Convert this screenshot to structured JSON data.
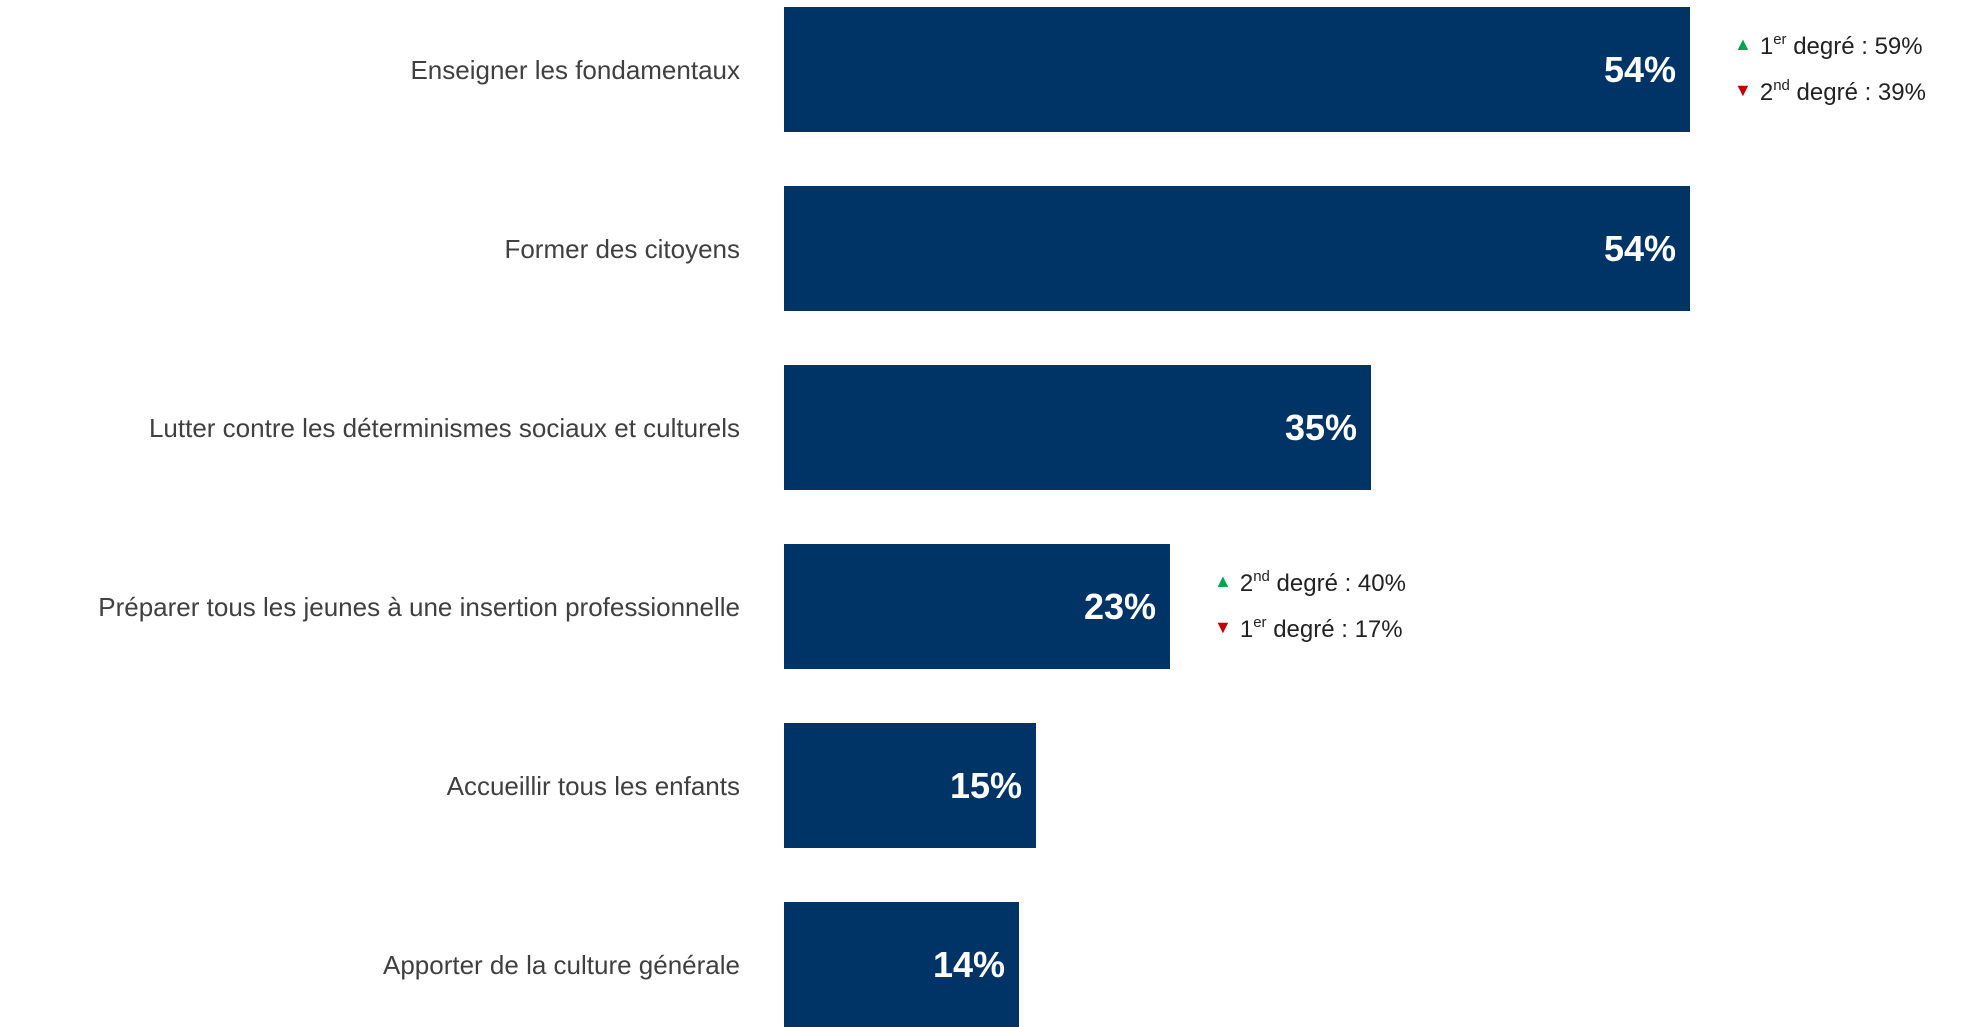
{
  "chart_data": {
    "type": "bar",
    "orientation": "horizontal",
    "categories": [
      "Enseigner les fondamentaux",
      "Former des citoyens",
      "Lutter contre les déterminismes sociaux et culturels",
      "Préparer tous les jeunes à une insertion professionnelle",
      "Accueillir tous les enfants",
      "Apporter de la culture générale"
    ],
    "values": [
      54,
      54,
      35,
      23,
      15,
      14
    ],
    "value_labels": [
      "54%",
      "54%",
      "35%",
      "23%",
      "15%",
      "14%"
    ],
    "value_suffix": "%",
    "title": "",
    "xlabel": "",
    "ylabel": "",
    "xlim": [
      0,
      54
    ],
    "grid": false,
    "legend": "none",
    "colors": {
      "bar": "#003366",
      "value_text": "#ffffff",
      "category_text": "#404040",
      "up_arrow": "#00a550",
      "down_arrow": "#c00000"
    },
    "annotations": [
      {
        "category_index": 0,
        "lines": [
          {
            "direction": "up",
            "ordinal": "1",
            "suffix": "er",
            "text": " degré : 59%"
          },
          {
            "direction": "down",
            "ordinal": "2",
            "suffix": "nd",
            "text": " degré : 39%"
          }
        ]
      },
      {
        "category_index": 3,
        "lines": [
          {
            "direction": "up",
            "ordinal": "2",
            "suffix": "nd",
            "text": " degré : 40%"
          },
          {
            "direction": "down",
            "ordinal": "1",
            "suffix": "er",
            "text": " degré : 17%"
          }
        ]
      }
    ]
  }
}
